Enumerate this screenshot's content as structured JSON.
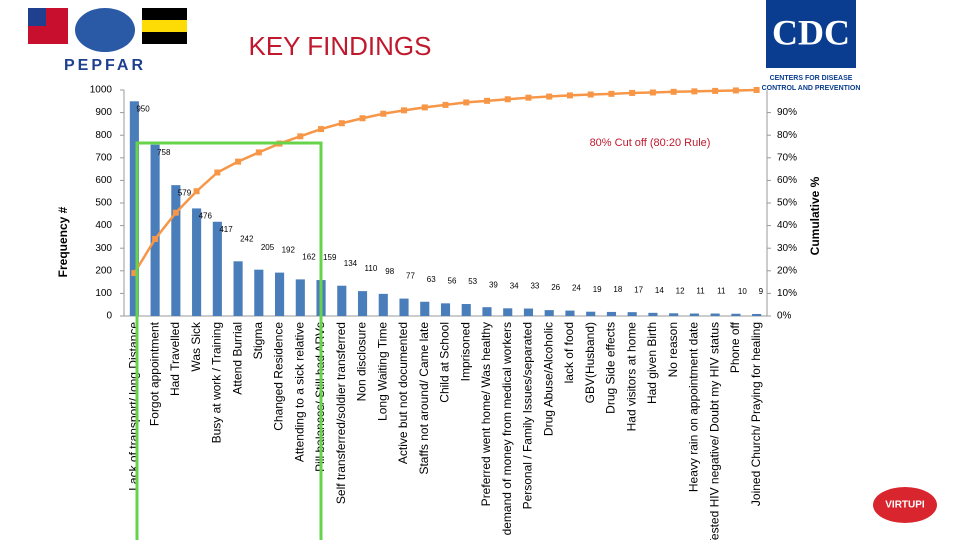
{
  "logos": {
    "pepfar": "PEPFAR",
    "cdc": "CDC",
    "cdc_subtitle": [
      "CENTERS FOR DISEASE",
      "CONTROL AND PREVENTION"
    ],
    "corner": "VIRTUPI"
  },
  "chart_data": {
    "type": "pareto",
    "title": "KEY FINDINGS",
    "y_label": "Frequency #",
    "y2_label": "Cumulative %",
    "annotation": "80% Cut off (80:20 Rule)",
    "categories": [
      "Lack of transport/ long Distance",
      "Forgot appointment",
      "Had Travelled",
      "Was Sick",
      "Busy at work / Training",
      "Attend Burrial",
      "Stigma",
      "Changed Residence",
      "Attending to a sick relative",
      "Pill balances/ Still had ARVs",
      "Self transferred/soldier transferred",
      "Non disclosure",
      "Long Waiting Time",
      "Active but not documented",
      "Staffs not around/ Came late",
      "Child at School",
      "Imprisoned",
      "Preferred went home/ Was healthy",
      "demand of money from medical workers",
      "Personal / Family Issues/separated",
      "Drug Abuse/Alcoholic",
      "lack of food",
      "GBV(Husband)",
      "Drug Side effects",
      "Had visitors at home",
      "Had given Birth",
      "No reason",
      "Heavy rain on appointment date",
      "Tested HIV negative/ Doubt my HIV status",
      "Phone off",
      "Joined Church/ Praying for healing"
    ],
    "values": [
      950,
      758,
      579,
      476,
      417,
      242,
      205,
      192,
      162,
      159,
      134,
      110,
      98,
      77,
      63,
      56,
      53,
      39,
      34,
      33,
      26,
      24,
      19,
      18,
      17,
      14,
      12,
      11,
      11,
      10,
      9
    ],
    "color": "#4a7ebb",
    "cumulative_values": [
      19.0,
      34.1,
      45.7,
      55.2,
      63.5,
      68.3,
      72.4,
      76.3,
      79.5,
      82.7,
      85.3,
      87.5,
      89.5,
      91.0,
      92.3,
      93.4,
      94.5,
      95.2,
      95.9,
      96.6,
      97.1,
      97.6,
      98.0,
      98.3,
      98.7,
      98.9,
      99.2,
      99.4,
      99.6,
      99.8,
      100
    ],
    "line_color": "#f79646",
    "ylim": [
      0,
      1000
    ],
    "yticks": [
      0,
      100,
      200,
      300,
      400,
      500,
      600,
      700,
      800,
      900,
      1000
    ],
    "y2lim": [
      0,
      100
    ],
    "y2ticks": [
      {
        "value": 0,
        "label": "0%"
      },
      {
        "value": 10,
        "label": "10%"
      },
      {
        "value": 20,
        "label": "20%"
      },
      {
        "value": 30,
        "label": "30%"
      },
      {
        "value": 40,
        "label": "40%"
      },
      {
        "value": 50,
        "label": "50%"
      },
      {
        "value": 60,
        "label": "60%"
      },
      {
        "value": 70,
        "label": "70%"
      },
      {
        "value": 80,
        "label": "80%"
      },
      {
        "value": 90,
        "label": "90%"
      }
    ],
    "grid": false
  }
}
